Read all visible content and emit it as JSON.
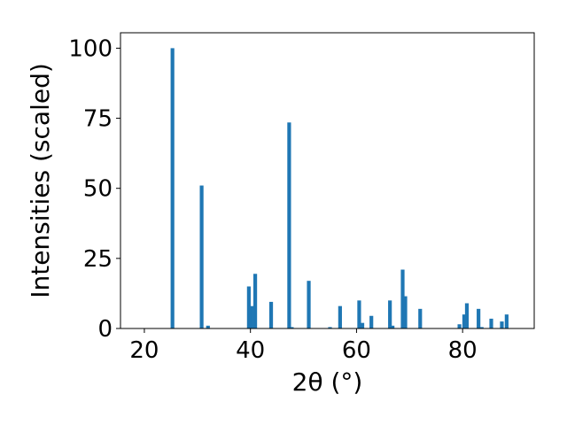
{
  "chart_data": {
    "type": "bar",
    "xlabel": "2θ (°)",
    "ylabel": "Intensities (scaled)",
    "xlim": [
      15.5,
      93.5
    ],
    "ylim": [
      0,
      105.5
    ],
    "x_ticks": [
      20,
      40,
      60,
      80
    ],
    "y_ticks": [
      0,
      25,
      50,
      75,
      100
    ],
    "bar_color": "#1f77b4",
    "bar_width": 0.7,
    "grid": false,
    "x": [
      25.3,
      30.8,
      32.0,
      55.0,
      39.7,
      40.2,
      40.9,
      43.9,
      47.3,
      47.8,
      51.0,
      56.9,
      60.5,
      61.1,
      62.8,
      66.3,
      66.8,
      68.7,
      69.2,
      72.0,
      79.4,
      80.3,
      80.8,
      83.0,
      83.6,
      85.4,
      87.4,
      88.3
    ],
    "values": [
      100,
      51,
      1,
      0.5,
      15,
      8,
      19.5,
      9.5,
      73.5,
      0.5,
      17,
      8,
      10,
      2,
      4.5,
      10,
      1,
      21,
      11.5,
      7,
      1.5,
      5,
      9,
      7,
      0.5,
      3.5,
      2.5,
      5
    ]
  }
}
